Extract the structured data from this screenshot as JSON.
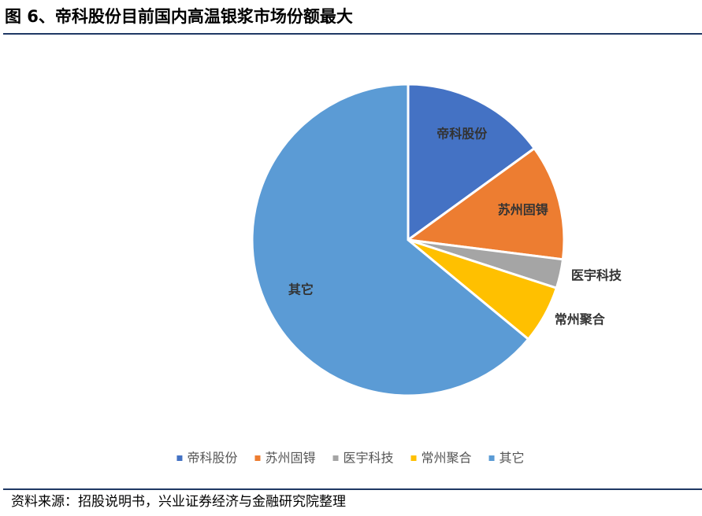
{
  "chart_data": {
    "type": "pie",
    "title": "图 6、帝科股份目前国内高温银浆市场份额最大",
    "categories": [
      "帝科股份",
      "苏州固锝",
      "医宇科技",
      "常州聚合",
      "其它"
    ],
    "values": [
      15,
      12,
      3,
      6,
      64
    ],
    "colors": [
      "#4472c4",
      "#ed7d31",
      "#a5a5a5",
      "#ffc000",
      "#5b9bd5"
    ],
    "legend": "bottom",
    "source": "资料来源：招股说明书，兴业证券经济与金融研究院整理"
  }
}
